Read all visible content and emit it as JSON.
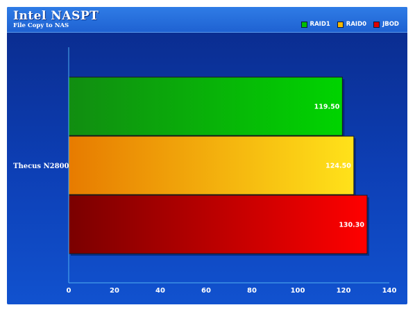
{
  "chart_data": {
    "type": "bar",
    "orientation": "horizontal",
    "title": "Intel NASPT",
    "subtitle": "File Copy to NAS",
    "categories": [
      "Thecus N2800"
    ],
    "series": [
      {
        "name": "RAID1",
        "values": [
          119.5
        ],
        "labels": [
          "119.50"
        ],
        "color": "#00c000"
      },
      {
        "name": "RAID0",
        "values": [
          124.5
        ],
        "labels": [
          "124.50"
        ],
        "color": "#f5b800"
      },
      {
        "name": "JBOD",
        "values": [
          130.3
        ],
        "labels": [
          "130.30"
        ],
        "color": "#e00000"
      }
    ],
    "xlim": [
      0,
      140
    ],
    "x_ticks": [
      0,
      20,
      40,
      60,
      80,
      100,
      120,
      140
    ],
    "x_tick_labels": [
      "0",
      "20",
      "40",
      "60",
      "80",
      "100",
      "120",
      "140"
    ],
    "grid": false,
    "legend_position": "top-right"
  },
  "colors": {
    "background_top": "#0a2a8a",
    "background_bottom": "#1152cf",
    "axis": "#4fb0f0"
  }
}
